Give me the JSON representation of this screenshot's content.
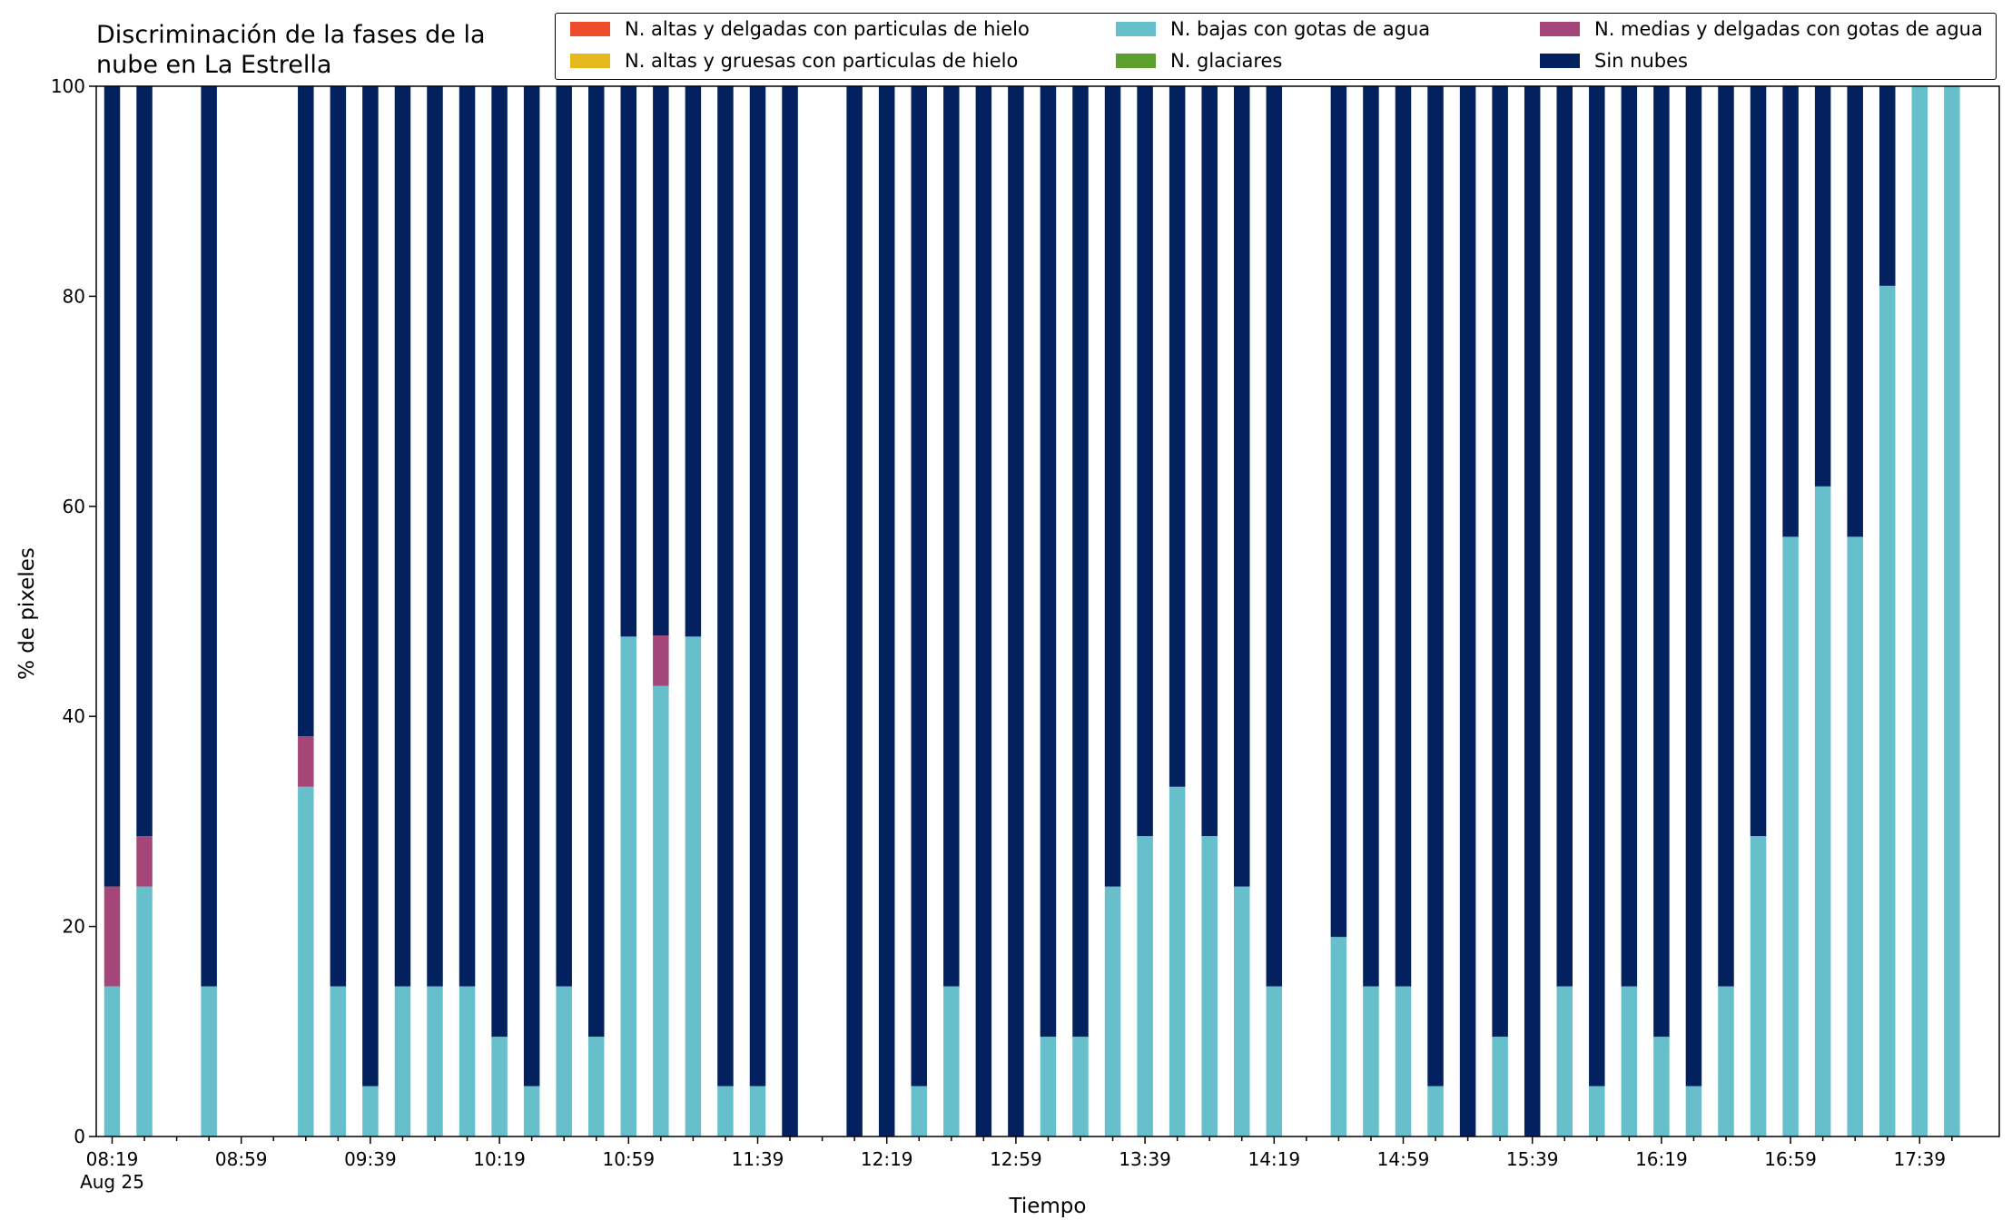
{
  "chart_data": {
    "type": "bar",
    "stacked": true,
    "title": "Discriminación de la fases de la\nnube en La Estrella",
    "xlabel": "Tiempo",
    "ylabel": "% de pixeles",
    "ylim": [
      0,
      100
    ],
    "yticks": [
      0,
      20,
      40,
      60,
      80,
      100
    ],
    "grid": false,
    "legend_position": "top-right",
    "date_sublabel": "Aug 25",
    "xtick_labels": [
      "08:19",
      "08:59",
      "09:39",
      "10:19",
      "10:59",
      "11:39",
      "12:19",
      "12:59",
      "13:39",
      "14:19",
      "14:59",
      "15:39",
      "16:19",
      "16:59",
      "17:39"
    ],
    "x": [
      "08:19",
      "08:29",
      "08:39",
      "08:49",
      "08:59",
      "09:09",
      "09:19",
      "09:29",
      "09:39",
      "09:49",
      "09:59",
      "10:09",
      "10:19",
      "10:29",
      "10:39",
      "10:49",
      "10:59",
      "11:09",
      "11:19",
      "11:29",
      "11:39",
      "11:49",
      "11:59",
      "12:09",
      "12:19",
      "12:29",
      "12:39",
      "12:49",
      "12:59",
      "13:09",
      "13:19",
      "13:29",
      "13:39",
      "13:49",
      "13:59",
      "14:09",
      "14:19",
      "14:29",
      "14:39",
      "14:49",
      "14:59",
      "15:09",
      "15:19",
      "15:29",
      "15:39",
      "15:49",
      "15:59",
      "16:09",
      "16:19",
      "16:29",
      "16:39",
      "16:49",
      "16:59",
      "17:09",
      "17:19",
      "17:29",
      "17:39",
      "17:49"
    ],
    "series": [
      {
        "name": "N. altas y delgadas con particulas de hielo",
        "color": "#ee4b2b",
        "values": [
          0,
          0,
          0,
          0,
          0,
          0,
          0,
          0,
          0,
          0,
          0,
          0,
          0,
          0,
          0,
          0,
          0,
          0,
          0,
          0,
          0,
          0,
          0,
          0,
          0,
          0,
          0,
          0,
          0,
          0,
          0,
          0,
          0,
          0,
          0,
          0,
          0,
          0,
          0,
          0,
          0,
          0,
          0,
          0,
          0,
          0,
          0,
          0,
          0,
          0,
          0,
          0,
          0,
          0,
          0,
          0,
          0,
          0
        ]
      },
      {
        "name": "N. altas y gruesas con particulas de hielo",
        "color": "#e6b91e",
        "values": [
          0,
          0,
          0,
          0,
          0,
          0,
          0,
          0,
          0,
          0,
          0,
          0,
          0,
          0,
          0,
          0,
          0,
          0,
          0,
          0,
          0,
          0,
          0,
          0,
          0,
          0,
          0,
          0,
          0,
          0,
          0,
          0,
          0,
          0,
          0,
          0,
          0,
          0,
          0,
          0,
          0,
          0,
          0,
          0,
          0,
          0,
          0,
          0,
          0,
          0,
          0,
          0,
          0,
          0,
          0,
          0,
          0,
          0
        ]
      },
      {
        "name": "N. bajas con gotas de agua",
        "color": "#67bfcb",
        "values": [
          14.3,
          23.8,
          null,
          14.3,
          null,
          null,
          33.3,
          14.3,
          4.8,
          14.3,
          14.3,
          14.3,
          9.5,
          4.8,
          14.3,
          9.5,
          47.6,
          42.9,
          47.6,
          4.8,
          4.8,
          0,
          null,
          0,
          0,
          4.8,
          14.3,
          0,
          0,
          9.5,
          9.5,
          23.8,
          28.6,
          33.3,
          28.6,
          23.8,
          14.3,
          null,
          19.0,
          14.3,
          14.3,
          4.8,
          0,
          9.5,
          0,
          14.3,
          4.8,
          14.3,
          9.5,
          4.8,
          14.3,
          28.6,
          57.1,
          61.9,
          57.1,
          81.0,
          100,
          100
        ]
      },
      {
        "name": "N. glaciares",
        "color": "#5d9f2e",
        "values": [
          0,
          0,
          null,
          0,
          null,
          null,
          0,
          0,
          0,
          0,
          0,
          0,
          0,
          0,
          0,
          0,
          0,
          0,
          0,
          0,
          0,
          0,
          null,
          0,
          0,
          0,
          0,
          0,
          0,
          0,
          0,
          0,
          0,
          0,
          0,
          0,
          0,
          null,
          0,
          0,
          0,
          0,
          0,
          0,
          0,
          0,
          0,
          0,
          0,
          0,
          0,
          0,
          0,
          0,
          0,
          0,
          0,
          0
        ]
      },
      {
        "name": "N. medias y delgadas con gotas de agua",
        "color": "#a44677",
        "values": [
          9.5,
          4.8,
          null,
          0,
          null,
          null,
          4.8,
          0,
          0,
          0,
          0,
          0,
          0,
          0,
          0,
          0,
          0,
          4.8,
          0,
          0,
          0,
          0,
          null,
          0,
          0,
          0,
          0,
          0,
          0,
          0,
          0,
          0,
          0,
          0,
          0,
          0,
          0,
          null,
          0,
          0,
          0,
          0,
          0,
          0,
          0,
          0,
          0,
          0,
          0,
          0,
          0,
          0,
          0,
          0,
          0,
          0,
          0,
          0
        ]
      },
      {
        "name": "Sin nubes",
        "color": "#03205f",
        "values": [
          76.2,
          71.4,
          null,
          85.7,
          null,
          null,
          61.9,
          85.7,
          95.2,
          85.7,
          85.7,
          85.7,
          90.5,
          95.2,
          85.7,
          90.5,
          52.4,
          52.3,
          52.4,
          95.2,
          95.2,
          100,
          null,
          100,
          100,
          95.2,
          85.7,
          100,
          100,
          90.5,
          90.5,
          76.2,
          71.4,
          66.7,
          71.4,
          76.2,
          85.7,
          null,
          81.0,
          85.7,
          85.7,
          95.2,
          100,
          90.5,
          100,
          85.7,
          95.2,
          85.7,
          90.5,
          95.2,
          85.7,
          71.4,
          42.9,
          38.1,
          42.9,
          19.0,
          0,
          0
        ]
      }
    ]
  }
}
